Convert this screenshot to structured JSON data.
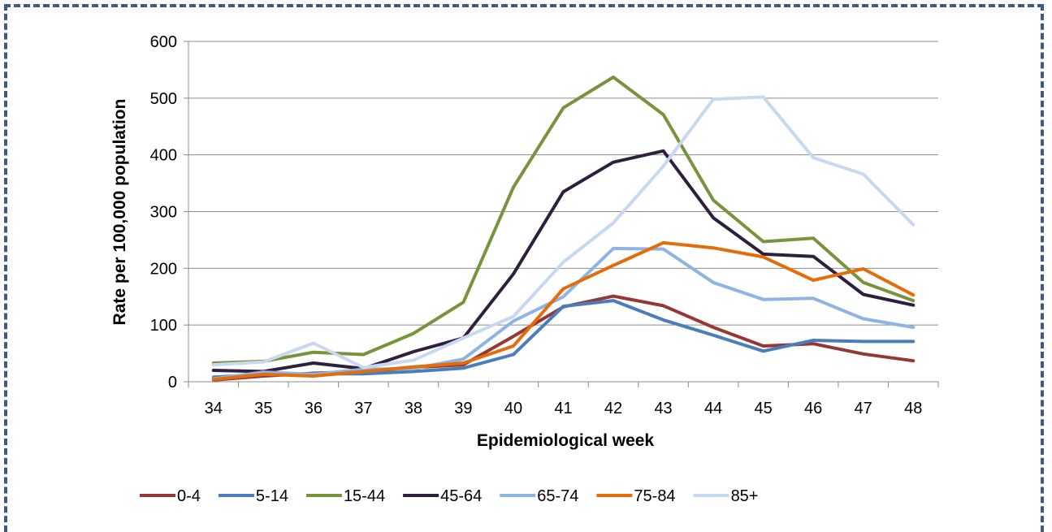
{
  "chart_data": {
    "type": "line",
    "title": "",
    "xlabel": "Epidemiological week",
    "ylabel": "Rate per 100,000 population",
    "categories": [
      "34",
      "35",
      "36",
      "37",
      "38",
      "39",
      "40",
      "41",
      "42",
      "43",
      "44",
      "45",
      "46",
      "47",
      "48"
    ],
    "ylim": [
      0,
      600
    ],
    "yticks": [
      0,
      100,
      200,
      300,
      400,
      500,
      600
    ],
    "grid": true,
    "legend": "bottom",
    "series": [
      {
        "name": "0-4",
        "color": "#953735",
        "values": [
          3,
          10,
          15,
          18,
          25,
          30,
          80,
          132,
          151,
          134,
          96,
          63,
          67,
          49,
          37
        ]
      },
      {
        "name": "5-14",
        "color": "#4a7ebb",
        "values": [
          8,
          13,
          14,
          14,
          18,
          24,
          48,
          133,
          143,
          109,
          82,
          54,
          73,
          71,
          71
        ]
      },
      {
        "name": "15-44",
        "color": "#77933c",
        "values": [
          33,
          36,
          52,
          48,
          85,
          140,
          343,
          483,
          537,
          471,
          320,
          247,
          253,
          175,
          143
        ]
      },
      {
        "name": "45-64",
        "color": "#2e1f3e",
        "values": [
          20,
          18,
          33,
          23,
          53,
          77,
          190,
          335,
          387,
          407,
          289,
          225,
          221,
          154,
          135
        ]
      },
      {
        "name": "65-74",
        "color": "#8eb4e3",
        "values": [
          5,
          17,
          13,
          22,
          23,
          40,
          107,
          150,
          235,
          234,
          175,
          145,
          147,
          111,
          96
        ]
      },
      {
        "name": "75-84",
        "color": "#e46c0a",
        "values": [
          4,
          13,
          10,
          18,
          26,
          33,
          63,
          164,
          205,
          245,
          236,
          220,
          179,
          199,
          153
        ]
      },
      {
        "name": "85+",
        "color": "#c6d9f1",
        "values": [
          30,
          35,
          68,
          25,
          38,
          77,
          115,
          211,
          280,
          380,
          498,
          502,
          395,
          366,
          277
        ]
      }
    ]
  }
}
